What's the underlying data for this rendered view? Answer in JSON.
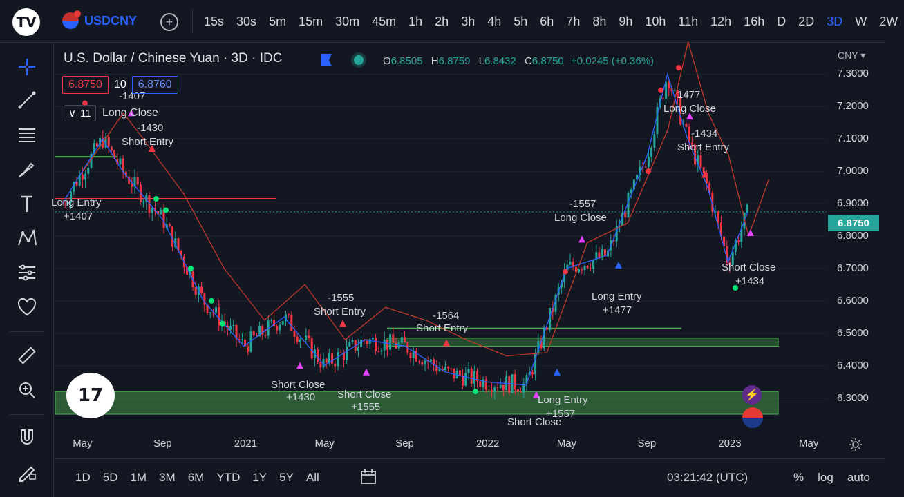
{
  "symbol": {
    "ticker": "USDCNY"
  },
  "intervals": [
    "15s",
    "30s",
    "5m",
    "15m",
    "30m",
    "45m",
    "1h",
    "2h",
    "3h",
    "4h",
    "5h",
    "6h",
    "7h",
    "8h",
    "9h",
    "10h",
    "11h",
    "12h",
    "16h",
    "D",
    "2D",
    "3D",
    "W",
    "2W"
  ],
  "active_interval": "3D",
  "legend": {
    "title": "U.S. Dollar / Chinese Yuan · 3D · IDC",
    "ohlc": [
      {
        "k": "O",
        "v": "6.8505"
      },
      {
        "k": "H",
        "v": "6.8759"
      },
      {
        "k": "L",
        "v": "6.8432"
      },
      {
        "k": "C",
        "v": "6.8750"
      }
    ],
    "change": "+0.0245 (+0.36%)"
  },
  "indicator": {
    "sell": "6.8750",
    "spread": "10",
    "buy": "6.8760",
    "collapse_count": "11",
    "collapse_label": "Long Close"
  },
  "currency": "CNY",
  "price_axis": {
    "labels": [
      "7.3000",
      "7.2000",
      "7.1000",
      "7.0000",
      "6.9000",
      "6.8000",
      "6.7000",
      "6.6000",
      "6.5000",
      "6.4000",
      "6.3000"
    ],
    "current": "6.8750"
  },
  "time_axis": [
    "May",
    "Sep",
    "2021",
    "May",
    "Sep",
    "2022",
    "May",
    "Sep",
    "2023",
    "May"
  ],
  "annotations": [
    {
      "text": "-1407"
    },
    {
      "text": "-1430"
    },
    {
      "text": "Short Entry"
    },
    {
      "text": "Long Entry"
    },
    {
      "text": "+1407"
    },
    {
      "text": "-1555"
    },
    {
      "text": "Short Entry"
    },
    {
      "text": "-1564"
    },
    {
      "text": "Short Entry"
    },
    {
      "text": "Short Close"
    },
    {
      "text": "+1430"
    },
    {
      "text": "Short Close"
    },
    {
      "text": "+1555"
    },
    {
      "text": "Long Entry"
    },
    {
      "text": "+1557"
    },
    {
      "text": "Short Close"
    },
    {
      "text": "-1557"
    },
    {
      "text": "Long Close"
    },
    {
      "text": "Long Entry"
    },
    {
      "text": "+1477"
    },
    {
      "text": "1477"
    },
    {
      "text": "Long Close"
    },
    {
      "text": "-1434"
    },
    {
      "text": "Short Entry"
    },
    {
      "text": "Short Close"
    },
    {
      "text": "+1434"
    }
  ],
  "ranges": [
    "1D",
    "5D",
    "1M",
    "3M",
    "6M",
    "YTD",
    "1Y",
    "5Y",
    "All"
  ],
  "clock": "03:21:42 (UTC)",
  "bottom_right": [
    "%",
    "log",
    "auto"
  ],
  "colors": {
    "up": "#26a69a",
    "down": "#f23645",
    "accent": "#2962ff",
    "bg": "#131722"
  },
  "chart_data": {
    "type": "candlestick",
    "ylim": [
      6.25,
      7.35
    ],
    "trend": [
      {
        "x": "2020-04",
        "y": 6.9
      },
      {
        "x": "2020-06",
        "y": 7.1
      },
      {
        "x": "2020-07",
        "y": 7.0
      },
      {
        "x": "2020-09",
        "y": 6.85
      },
      {
        "x": "2020-11",
        "y": 6.6
      },
      {
        "x": "2021-01",
        "y": 6.46
      },
      {
        "x": "2021-03",
        "y": 6.55
      },
      {
        "x": "2021-05",
        "y": 6.4
      },
      {
        "x": "2021-07",
        "y": 6.48
      },
      {
        "x": "2021-09",
        "y": 6.46
      },
      {
        "x": "2021-11",
        "y": 6.38
      },
      {
        "x": "2022-01",
        "y": 6.35
      },
      {
        "x": "2022-03",
        "y": 6.34
      },
      {
        "x": "2022-05",
        "y": 6.7
      },
      {
        "x": "2022-07",
        "y": 6.74
      },
      {
        "x": "2022-09",
        "y": 7.05
      },
      {
        "x": "2022-10",
        "y": 7.3
      },
      {
        "x": "2022-11",
        "y": 7.1
      },
      {
        "x": "2022-12",
        "y": 6.95
      },
      {
        "x": "2023-01",
        "y": 6.72
      },
      {
        "x": "2023-02",
        "y": 6.875
      }
    ]
  }
}
